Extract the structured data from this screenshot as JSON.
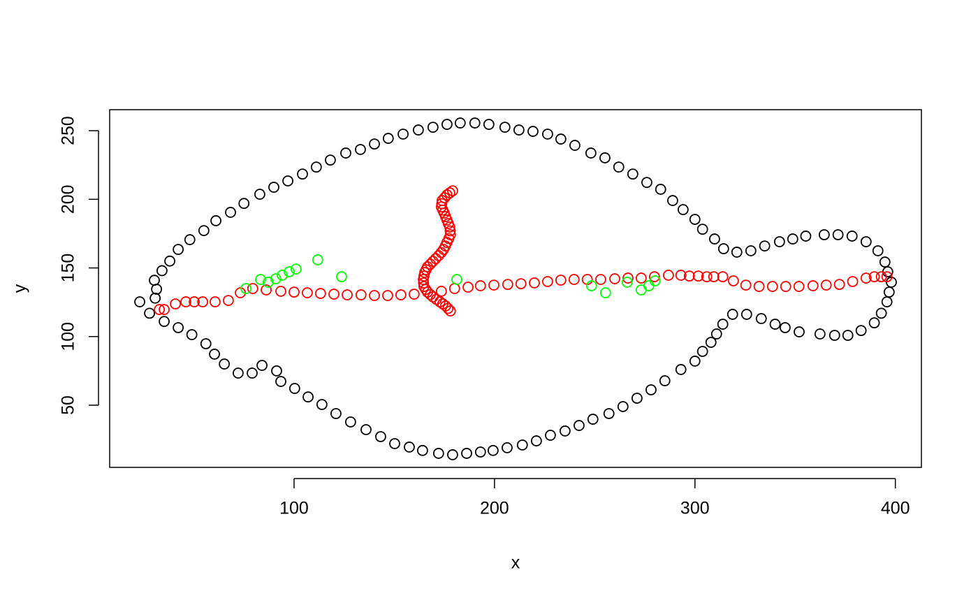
{
  "chart_data": {
    "type": "scatter",
    "xlabel": "x",
    "ylabel": "y",
    "xlim": [
      8,
      413
    ],
    "ylim": [
      4.7,
      265.3
    ],
    "xticks": [
      100,
      200,
      300,
      400
    ],
    "yticks": [
      50,
      100,
      150,
      200,
      250
    ],
    "marker": "open-circle",
    "series": [
      {
        "color": "#000000",
        "x": [
          23,
          27.9,
          30.3,
          30.7,
          31.4,
          34.1,
          35.2,
          38,
          42.2,
          42.2,
          48,
          49,
          55,
          56,
          60.3,
          61,
          65.2,
          68.3,
          72.1,
          75,
          79.1,
          82.9,
          84,
          89.9,
          91.3,
          93.4,
          96.9,
          100.3,
          104.2,
          107,
          111.1,
          113.9,
          118.1,
          120.9,
          125.8,
          128.2,
          133.1,
          135.9,
          140.1,
          143.2,
          147,
          150.2,
          154.4,
          157.5,
          162,
          164.1,
          169.3,
          172.1,
          176.3,
          179.1,
          182.9,
          186.1,
          190.2,
          193,
          197.2,
          199.3,
          205.2,
          206.3,
          212.2,
          213.9,
          219.2,
          220.9,
          226.5,
          227.9,
          233.1,
          235.2,
          240.1,
          242.2,
          248.1,
          249.1,
          255.1,
          257.1,
          262,
          264.1,
          269,
          271.1,
          276,
          278.1,
          282.9,
          285,
          288.9,
          293,
          294.1,
          300,
          300,
          303.8,
          303.8,
          308,
          309.8,
          310.8,
          314.3,
          313.9,
          318.8,
          320.9,
          325.8,
          327.9,
          333.1,
          334.8,
          340,
          342.2,
          345,
          348.8,
          352,
          355.3,
          362.4,
          364.5,
          369.7,
          371.4,
          376.3,
          378.4,
          382.9,
          385.4,
          389.5,
          391.3,
          393,
          394.8,
          395.8,
          396.2,
          396.9,
          398
        ],
        "y": [
          125.3,
          117,
          141,
          128,
          134.5,
          148,
          111,
          155,
          106.5,
          163.5,
          170.6,
          101.4,
          177.2,
          94.8,
          87.2,
          184.4,
          80,
          190.5,
          73.4,
          197,
          73.4,
          203.7,
          79,
          208.8,
          75,
          67.3,
          213.4,
          62.2,
          218.4,
          56,
          223.5,
          50.5,
          228.6,
          43.9,
          233.7,
          37.8,
          236.3,
          32.2,
          240.3,
          27.1,
          244.4,
          22,
          247.5,
          19.5,
          250.5,
          17,
          252.5,
          14.9,
          254.6,
          13.9,
          255.6,
          14.9,
          255.6,
          15.9,
          254.6,
          17,
          252.5,
          19,
          250.5,
          21,
          249.5,
          24,
          247.5,
          28.1,
          243.9,
          31.2,
          239.3,
          35.2,
          233.7,
          39.8,
          230.2,
          43.9,
          223.5,
          49,
          218.4,
          55.1,
          212.3,
          61.2,
          207.3,
          67.8,
          199.1,
          76,
          192.5,
          82.1,
          185.4,
          89.2,
          178.2,
          95.8,
          171.1,
          101.9,
          164,
          109,
          116.2,
          161.5,
          116.2,
          162.5,
          113.1,
          166,
          109,
          169.1,
          106.5,
          171.1,
          103.4,
          173.2,
          101.9,
          174.2,
          100.9,
          174.2,
          100.9,
          173.2,
          104.4,
          169.1,
          110,
          162.5,
          117,
          154.3,
          125.3,
          147.2,
          132.4,
          139.6
        ]
      },
      {
        "color": "#ff0000",
        "x": [
          32.8,
          35.2,
          40.8,
          46,
          50.2,
          54.4,
          60.6,
          67.2,
          73.2,
          79.4,
          86.1,
          93.4,
          100,
          106.6,
          113.2,
          119.9,
          126.5,
          133.4,
          140.1,
          146.7,
          153.3,
          159.9,
          173.5,
          180.1,
          186.8,
          193,
          199.7,
          206.6,
          213.2,
          219.9,
          226.5,
          233.1,
          239.7,
          246.3,
          253,
          260,
          266.6,
          273.2,
          279.8,
          286.8,
          293,
          297.2,
          301.7,
          305.9,
          309.4,
          313.9,
          319.2,
          325.4,
          332,
          338.7,
          345.3,
          351.9,
          358.9,
          365.5,
          372.1,
          378.7,
          385.4,
          389.5,
          393,
          395.8,
          178,
          176.8,
          175.6,
          174.2,
          172.8,
          171,
          169.3,
          168,
          166.6,
          165.7,
          164.8,
          164.6,
          164.5,
          164.8,
          165.2,
          165.9,
          166.6,
          168,
          169.3,
          170.7,
          172.1,
          173.4,
          174.6,
          175.5,
          176.3,
          177.2,
          178,
          177.9,
          177.7,
          177,
          176.3,
          175.6,
          174.9,
          174.2,
          173.5,
          173.7,
          173.9,
          175.1,
          176.3,
          177.7,
          179.1
        ],
        "y": [
          119.7,
          119.7,
          123.8,
          125.3,
          125.3,
          125.3,
          125.3,
          126.3,
          131.9,
          135,
          134,
          133,
          132.4,
          131.9,
          131.4,
          130.9,
          130.4,
          130.4,
          129.9,
          129.9,
          130.4,
          130.9,
          133,
          135,
          136,
          137,
          137.5,
          138,
          138.5,
          139.1,
          140.1,
          141.1,
          141.6,
          141.6,
          141.6,
          142.1,
          142.6,
          142.6,
          143.6,
          144.7,
          144.7,
          144.1,
          144.1,
          143.6,
          143.6,
          143.6,
          140.6,
          137.5,
          136.5,
          136.5,
          136.5,
          136.5,
          137,
          137.5,
          138,
          140.1,
          142.6,
          143.6,
          143.6,
          143.6,
          118.7,
          120.5,
          122.3,
          123.8,
          125.3,
          127.1,
          128.9,
          130.6,
          132.4,
          134.4,
          136.5,
          139,
          141.6,
          144.1,
          146.7,
          148.7,
          150.8,
          152.8,
          154.8,
          156.8,
          158.9,
          161.2,
          163.5,
          166,
          168.6,
          171.4,
          174.2,
          177,
          179.8,
          182.3,
          184.9,
          187.4,
          190,
          192.2,
          194.5,
          196.8,
          199.1,
          201.1,
          203.2,
          204.7,
          206.2
        ]
      },
      {
        "color": "#00ff00",
        "x": [
          76,
          83.3,
          87.1,
          90.9,
          94.1,
          97.6,
          101,
          111.8,
          123.7,
          181.2,
          248.4,
          255.4,
          266.2,
          273.2,
          277,
          280.1
        ],
        "y": [
          135,
          141.6,
          139.6,
          142.1,
          144.7,
          147.2,
          149.2,
          155.9,
          143.6,
          141.6,
          137,
          131.9,
          139.6,
          134,
          137,
          140.6
        ]
      }
    ]
  }
}
